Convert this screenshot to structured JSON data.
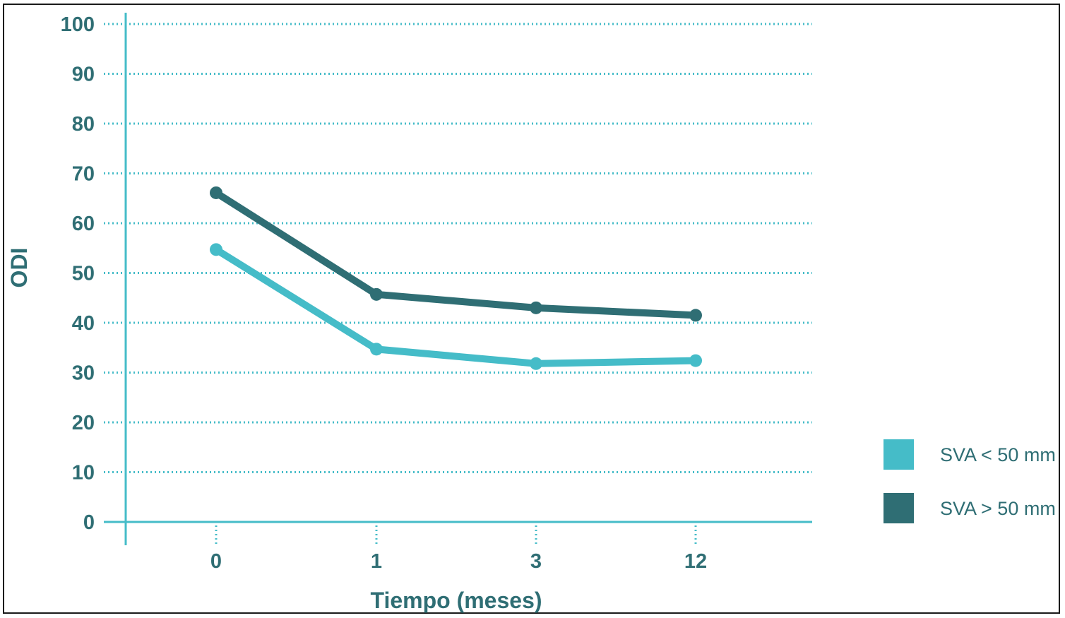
{
  "chart_data": {
    "type": "line",
    "title": "",
    "xlabel": "Tiempo (meses)",
    "ylabel": "ODI",
    "categories": [
      "0",
      "1",
      "3",
      "12"
    ],
    "ylim": [
      0,
      100
    ],
    "yticks": [
      0,
      10,
      20,
      30,
      40,
      50,
      60,
      70,
      80,
      90,
      100
    ],
    "grid": true,
    "grid_style": "dotted",
    "legend_position": "right",
    "series": [
      {
        "name": "SVA < 50 mm",
        "color": "#45bcc8",
        "values": [
          54.7,
          34.7,
          31.8,
          32.4
        ]
      },
      {
        "name": "SVA > 50 mm",
        "color": "#2f6e74",
        "values": [
          66.1,
          45.7,
          43.0,
          41.5
        ]
      }
    ],
    "axis_color": "#45bcc8",
    "text_color": "#2f6e74"
  }
}
